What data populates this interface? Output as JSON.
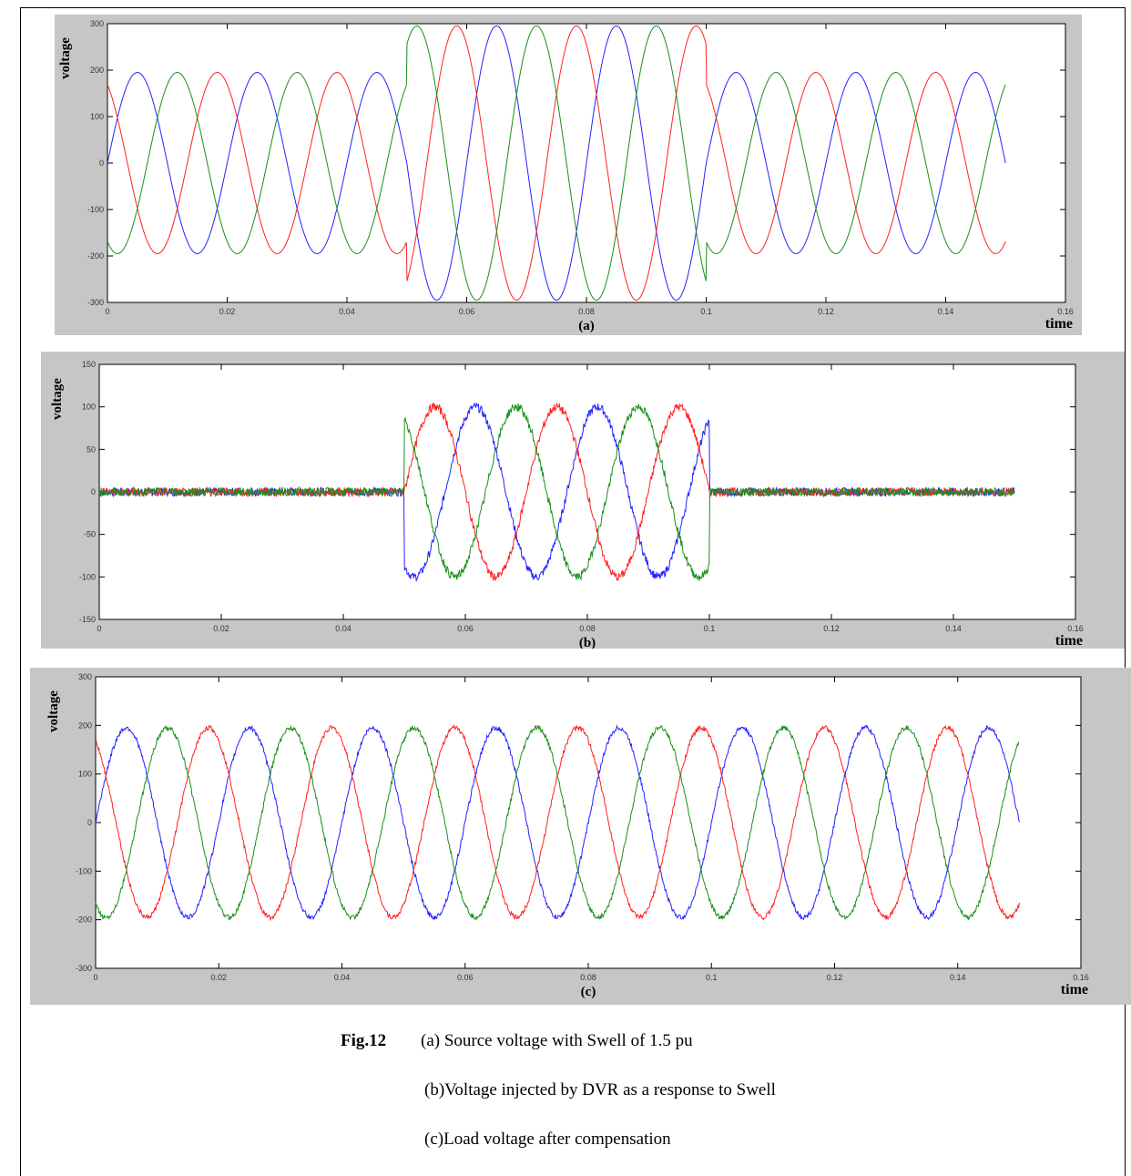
{
  "figure": {
    "label": "Fig.12",
    "caption_lines": [
      "(a) Source voltage with Swell of 1.5 pu",
      "(b)Voltage injected by DVR as a response to Swell",
      "(c)Load voltage after compensation"
    ]
  },
  "colors": {
    "phase_red": "#ff2020",
    "phase_green": "#1a8f1a",
    "phase_blue": "#2222ff",
    "panel_bg": "#c6c6c6",
    "plot_bg": "#ffffff"
  },
  "chart_data": [
    {
      "type": "line",
      "panel_label": "(a)",
      "xlabel": "time",
      "ylabel": "voltage",
      "xlim": [
        0,
        0.16
      ],
      "ylim": [
        -300,
        300
      ],
      "xticks": [
        0,
        0.02,
        0.04,
        0.06,
        0.08,
        0.1,
        0.12,
        0.14,
        0.16
      ],
      "xtick_labels": [
        "0",
        "0.02",
        "0.04",
        "0.06",
        "0.08",
        "0.1",
        "0.12",
        "0.14",
        "0.16"
      ],
      "yticks": [
        -300,
        -200,
        -100,
        0,
        100,
        200,
        300
      ],
      "ytick_labels": [
        "-300",
        "-200",
        "-100",
        "0",
        "100",
        "200",
        "300"
      ],
      "x_end": 0.15,
      "frequency_hz": 50,
      "normal_amplitude": 195,
      "event_window": [
        0.05,
        0.1
      ],
      "event_amplitude": 295,
      "noise": 0,
      "series": [
        {
          "color": "#2222ff",
          "phase_deg": 0
        },
        {
          "color": "#ff2020",
          "phase_deg": 120
        },
        {
          "color": "#1a8f1a",
          "phase_deg": -120
        }
      ]
    },
    {
      "type": "line",
      "panel_label": "(b)",
      "xlabel": "time",
      "ylabel": "voltage",
      "xlim": [
        0,
        0.16
      ],
      "ylim": [
        -150,
        150
      ],
      "xticks": [
        0,
        0.02,
        0.04,
        0.06,
        0.08,
        0.1,
        0.12,
        0.14,
        0.16
      ],
      "xtick_labels": [
        "0",
        "0.02",
        "0.04",
        "0.06",
        "0.08",
        "0.1",
        "0.12",
        "0.14",
        "0.16"
      ],
      "yticks": [
        -150,
        -100,
        -50,
        0,
        50,
        100,
        150
      ],
      "ytick_labels": [
        "-150",
        "-100",
        "-50",
        "0",
        "50",
        "100",
        "150"
      ],
      "x_end": 0.15,
      "frequency_hz": 50,
      "normal_amplitude": 0,
      "event_window": [
        0.05,
        0.1
      ],
      "event_amplitude": 100,
      "noise": 5,
      "series": [
        {
          "color": "#2222ff",
          "phase_deg": 60
        },
        {
          "color": "#ff2020",
          "phase_deg": 180
        },
        {
          "color": "#1a8f1a",
          "phase_deg": -60
        }
      ]
    },
    {
      "type": "line",
      "panel_label": "(c)",
      "xlabel": "time",
      "ylabel": "voltage",
      "xlim": [
        0,
        0.16
      ],
      "ylim": [
        -300,
        300
      ],
      "xticks": [
        0,
        0.02,
        0.04,
        0.06,
        0.08,
        0.1,
        0.12,
        0.14,
        0.16
      ],
      "xtick_labels": [
        "0",
        "0.02",
        "0.04",
        "0.06",
        "0.08",
        "0.1",
        "0.12",
        "0.14",
        "0.16"
      ],
      "yticks": [
        -300,
        -200,
        -100,
        0,
        100,
        200,
        300
      ],
      "ytick_labels": [
        "-300",
        "-200",
        "-100",
        "0",
        "100",
        "200",
        "300"
      ],
      "x_end": 0.15,
      "frequency_hz": 50,
      "normal_amplitude": 195,
      "event_window": [
        0.05,
        0.1
      ],
      "event_amplitude": 195,
      "noise": 5,
      "series": [
        {
          "color": "#2222ff",
          "phase_deg": 0
        },
        {
          "color": "#ff2020",
          "phase_deg": 120
        },
        {
          "color": "#1a8f1a",
          "phase_deg": -120
        }
      ]
    }
  ]
}
